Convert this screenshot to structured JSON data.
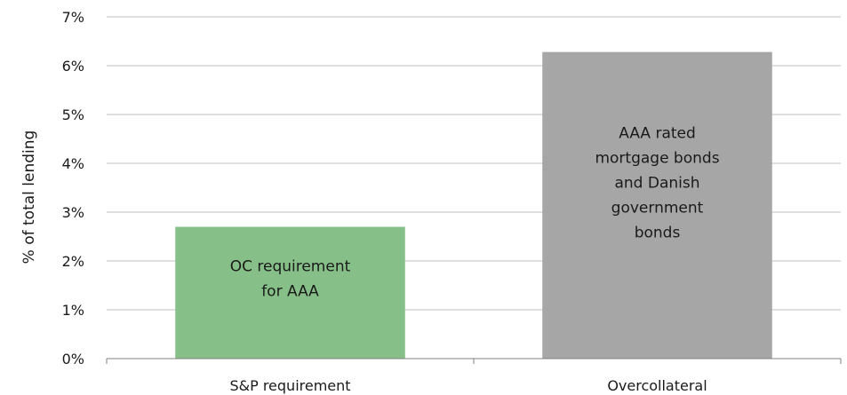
{
  "chart_data": {
    "type": "bar",
    "categories": [
      "S&P requirement",
      "Overcollateral"
    ],
    "values": [
      2.7,
      6.28
    ],
    "bar_labels": [
      [
        "OC requirement",
        "for AAA"
      ],
      [
        "AAA rated",
        "mortgage bonds",
        "and Danish",
        "government",
        "bonds"
      ]
    ],
    "colors": [
      "#86c088",
      "#a6a6a6"
    ],
    "ylabel": "% of total lending",
    "xlabel": "",
    "ylim": [
      0,
      7
    ],
    "yticks": [
      0,
      1,
      2,
      3,
      4,
      5,
      6,
      7
    ],
    "ytick_labels": [
      "0%",
      "1%",
      "2%",
      "3%",
      "4%",
      "5%",
      "6%",
      "7%"
    ],
    "grid": true,
    "legend": "none"
  }
}
